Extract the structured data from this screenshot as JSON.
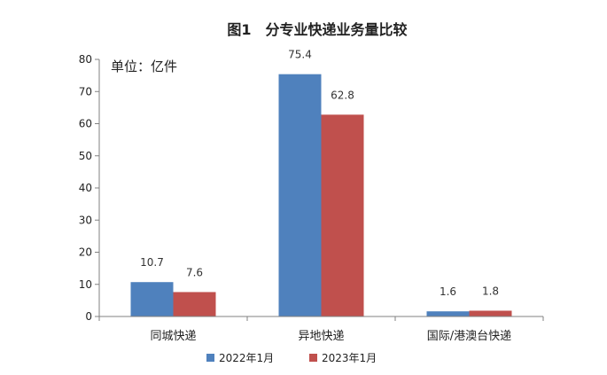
{
  "chart_data": {
    "type": "bar",
    "title": "图1　分专业快递业务量比较",
    "unit_label": "单位：亿件",
    "xlabel": "",
    "ylabel": "",
    "ylim": [
      0,
      80
    ],
    "yticks": [
      0,
      10,
      20,
      30,
      40,
      50,
      60,
      70,
      80
    ],
    "categories": [
      "同城快递",
      "异地快递",
      "国际/港澳台快递"
    ],
    "series": [
      {
        "name": "2022年1月",
        "color": "#4f81bd",
        "values": [
          10.7,
          75.4,
          1.6
        ]
      },
      {
        "name": "2023年1月",
        "color": "#c0504d",
        "values": [
          7.6,
          62.8,
          1.8
        ]
      }
    ],
    "legend_position": "bottom",
    "grid": false
  }
}
